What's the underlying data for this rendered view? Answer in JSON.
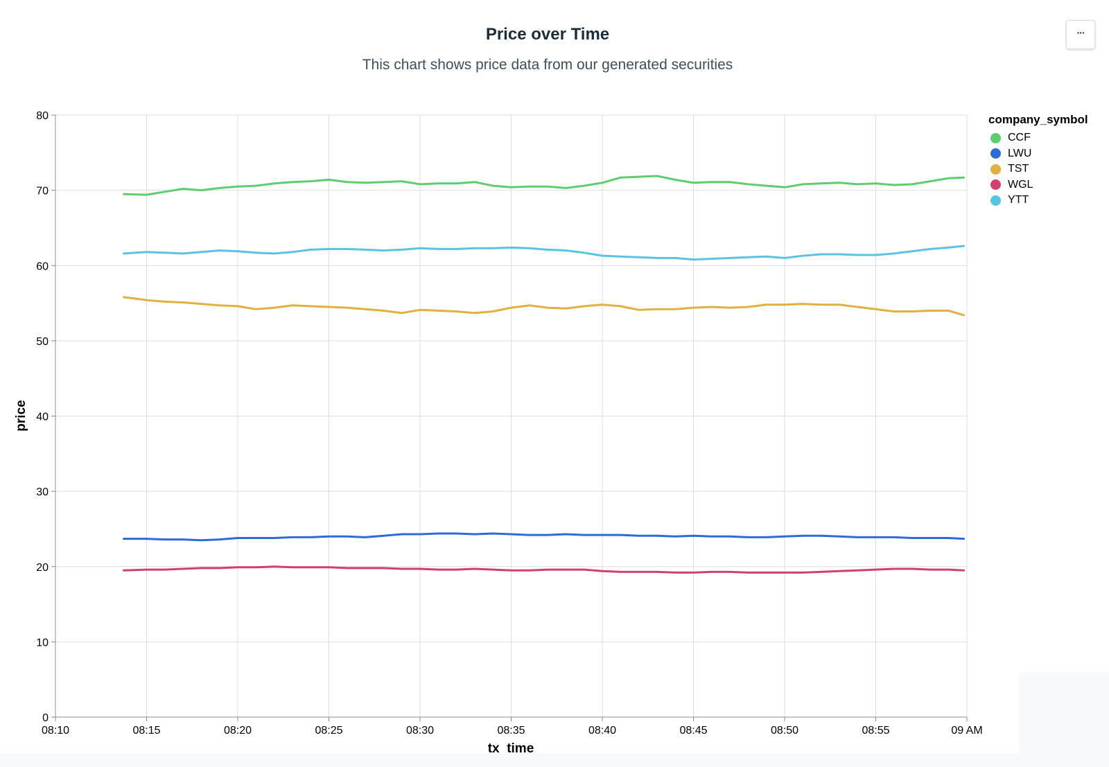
{
  "chart_data": {
    "type": "line",
    "title": "Price over Time",
    "subtitle": "This chart shows price data from our generated securities",
    "xlabel": "tx_time",
    "ylabel": "price",
    "xlim": [
      "08:10",
      "09:00"
    ],
    "ylim": [
      0,
      80
    ],
    "x_ticks": [
      "08:10",
      "08:15",
      "08:20",
      "08:25",
      "08:30",
      "08:35",
      "08:40",
      "08:45",
      "08:50",
      "08:55",
      "09 AM"
    ],
    "y_ticks": [
      "0",
      "10",
      "20",
      "30",
      "40",
      "50",
      "60",
      "70",
      "80"
    ],
    "grid": true,
    "legend_title": "company_symbol",
    "legend_position": "right",
    "x": [
      "08:13:45",
      "08:15",
      "08:16",
      "08:17",
      "08:18",
      "08:19",
      "08:20",
      "08:21",
      "08:22",
      "08:23",
      "08:24",
      "08:25",
      "08:26",
      "08:27",
      "08:28",
      "08:29",
      "08:30",
      "08:31",
      "08:32",
      "08:33",
      "08:34",
      "08:35",
      "08:36",
      "08:37",
      "08:38",
      "08:39",
      "08:40",
      "08:41",
      "08:42",
      "08:43",
      "08:44",
      "08:45",
      "08:46",
      "08:47",
      "08:48",
      "08:49",
      "08:50",
      "08:51",
      "08:52",
      "08:53",
      "08:54",
      "08:55",
      "08:56",
      "08:57",
      "08:58",
      "08:59",
      "08:59:50"
    ],
    "series": [
      {
        "name": "CCF",
        "color": "#5fcc6f",
        "values": [
          69.5,
          69.4,
          69.8,
          70.2,
          70.0,
          70.3,
          70.5,
          70.6,
          70.9,
          71.1,
          71.2,
          71.4,
          71.1,
          71.0,
          71.1,
          71.2,
          70.8,
          70.9,
          70.9,
          71.1,
          70.6,
          70.4,
          70.5,
          70.5,
          70.3,
          70.6,
          71.0,
          71.7,
          71.8,
          71.9,
          71.4,
          71.0,
          71.1,
          71.1,
          70.8,
          70.6,
          70.4,
          70.8,
          70.9,
          71.0,
          70.8,
          70.9,
          70.7,
          70.8,
          71.2,
          71.6,
          71.7
        ]
      },
      {
        "name": "LWU",
        "color": "#2f6bd8",
        "values": [
          23.7,
          23.7,
          23.6,
          23.6,
          23.5,
          23.6,
          23.8,
          23.8,
          23.8,
          23.9,
          23.9,
          24.0,
          24.0,
          23.9,
          24.1,
          24.3,
          24.3,
          24.4,
          24.4,
          24.3,
          24.4,
          24.3,
          24.2,
          24.2,
          24.3,
          24.2,
          24.2,
          24.2,
          24.1,
          24.1,
          24.0,
          24.1,
          24.0,
          24.0,
          23.9,
          23.9,
          24.0,
          24.1,
          24.1,
          24.0,
          23.9,
          23.9,
          23.9,
          23.8,
          23.8,
          23.8,
          23.7
        ]
      },
      {
        "name": "TST",
        "color": "#e0b040",
        "values": [
          55.8,
          55.4,
          55.2,
          55.1,
          54.9,
          54.7,
          54.6,
          54.2,
          54.4,
          54.7,
          54.6,
          54.5,
          54.4,
          54.2,
          54.0,
          53.7,
          54.1,
          54.0,
          53.9,
          53.7,
          53.9,
          54.4,
          54.7,
          54.4,
          54.3,
          54.6,
          54.8,
          54.6,
          54.1,
          54.2,
          54.2,
          54.4,
          54.5,
          54.4,
          54.5,
          54.8,
          54.8,
          54.9,
          54.8,
          54.8,
          54.5,
          54.2,
          53.9,
          53.9,
          54.0,
          54.0,
          53.4
        ]
      },
      {
        "name": "WGL",
        "color": "#d23f6e",
        "values": [
          19.5,
          19.6,
          19.6,
          19.7,
          19.8,
          19.8,
          19.9,
          19.9,
          20.0,
          19.9,
          19.9,
          19.9,
          19.8,
          19.8,
          19.8,
          19.7,
          19.7,
          19.6,
          19.6,
          19.7,
          19.6,
          19.5,
          19.5,
          19.6,
          19.6,
          19.6,
          19.4,
          19.3,
          19.3,
          19.3,
          19.2,
          19.2,
          19.3,
          19.3,
          19.2,
          19.2,
          19.2,
          19.2,
          19.3,
          19.4,
          19.5,
          19.6,
          19.7,
          19.7,
          19.6,
          19.6,
          19.5
        ]
      },
      {
        "name": "YTT",
        "color": "#5bc3e2",
        "values": [
          61.6,
          61.8,
          61.7,
          61.6,
          61.8,
          62.0,
          61.9,
          61.7,
          61.6,
          61.8,
          62.1,
          62.2,
          62.2,
          62.1,
          62.0,
          62.1,
          62.3,
          62.2,
          62.2,
          62.3,
          62.3,
          62.4,
          62.3,
          62.1,
          62.0,
          61.7,
          61.3,
          61.2,
          61.1,
          61.0,
          61.0,
          60.8,
          60.9,
          61.0,
          61.1,
          61.2,
          61.0,
          61.3,
          61.5,
          61.5,
          61.4,
          61.4,
          61.6,
          61.9,
          62.2,
          62.4,
          62.6
        ]
      }
    ]
  },
  "toolbar": {
    "menu_label": "···"
  }
}
